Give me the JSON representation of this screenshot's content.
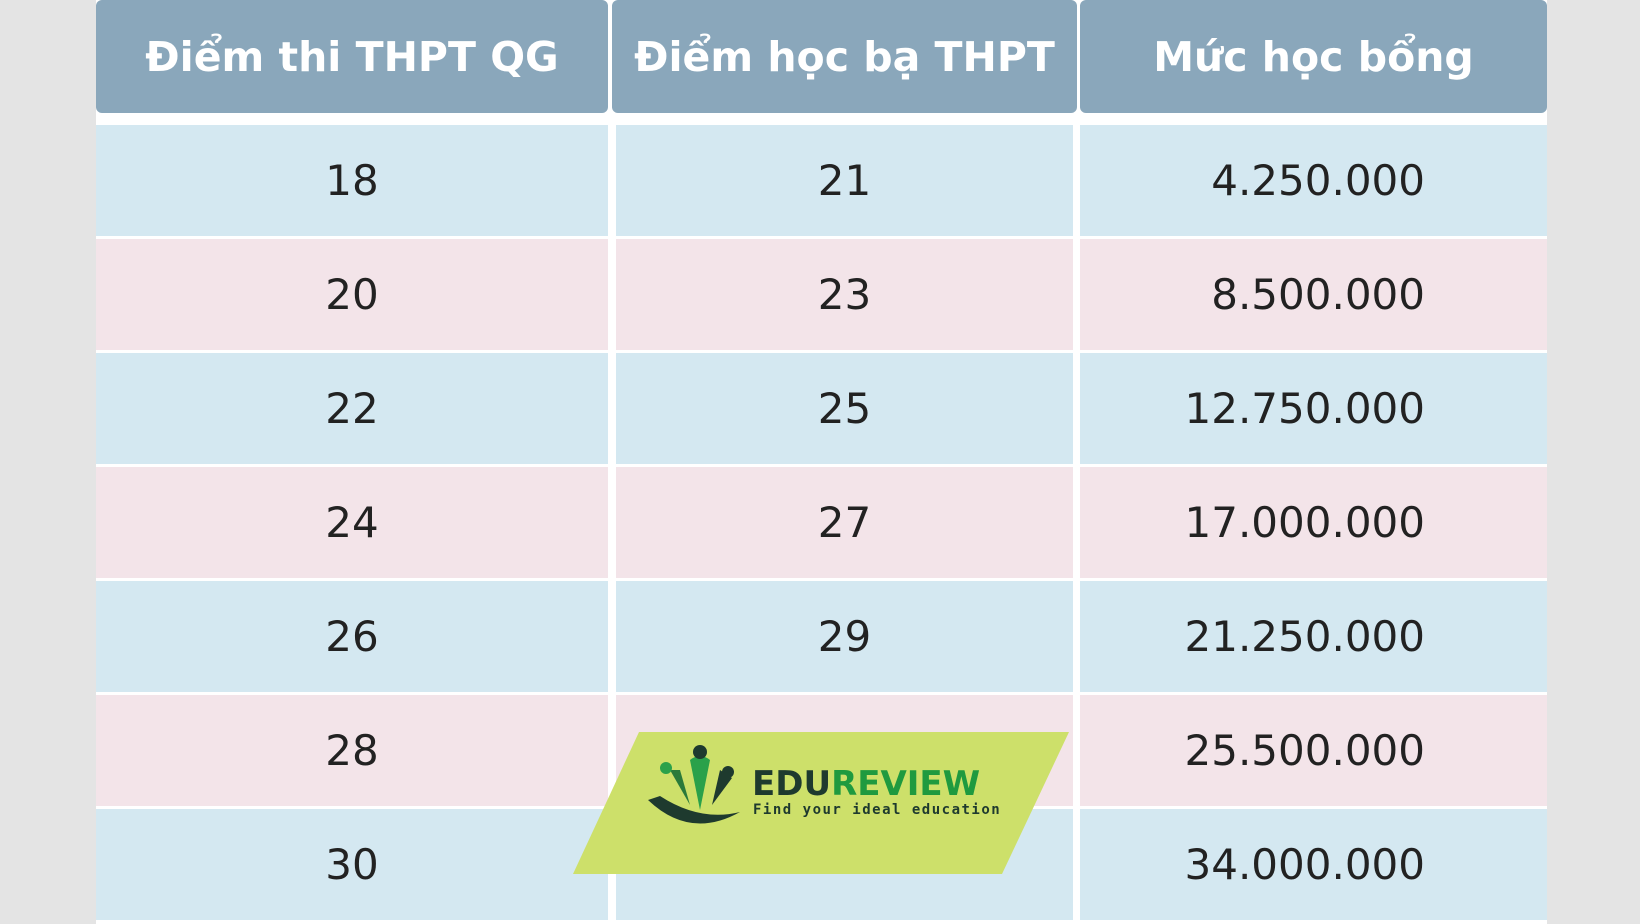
{
  "table": {
    "header": [
      "Điểm thi THPT QG",
      "Điểm học bạ THPT",
      "Mức học bổng"
    ],
    "rows": [
      [
        "18",
        "21",
        "4.250.000"
      ],
      [
        "20",
        "23",
        "8.500.000"
      ],
      [
        "22",
        "25",
        "12.750.000"
      ],
      [
        "24",
        "27",
        "17.000.000"
      ],
      [
        "26",
        "29",
        "21.250.000"
      ],
      [
        "28",
        null,
        "25.500.000"
      ],
      [
        "30",
        null,
        "34.000.000"
      ]
    ]
  },
  "logo": {
    "brand_dark": "EDU",
    "brand_green": "REVIEW",
    "tagline": "Find your ideal education"
  }
}
